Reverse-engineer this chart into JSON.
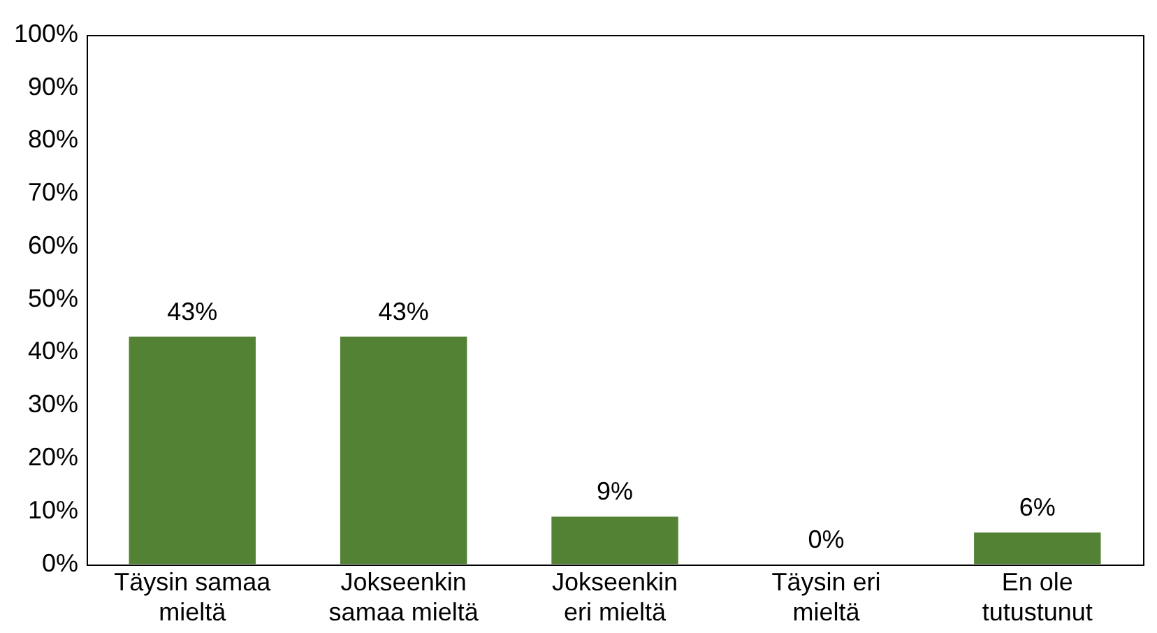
{
  "chart_data": {
    "type": "bar",
    "categories": [
      "Täysin samaa mieltä",
      "Jokseenkin samaa mieltä",
      "Jokseenkin eri mieltä",
      "Täysin eri mieltä",
      "En ole tutustunut"
    ],
    "values": [
      43,
      43,
      9,
      0,
      6
    ],
    "value_labels": [
      "43%",
      "43%",
      "9%",
      "0%",
      "6%"
    ],
    "color": "#548235",
    "ylim": [
      0,
      100
    ],
    "yticks": [
      {
        "value": 0,
        "label": "0%"
      },
      {
        "value": 10,
        "label": "10%"
      },
      {
        "value": 20,
        "label": "20%"
      },
      {
        "value": 30,
        "label": "30%"
      },
      {
        "value": 40,
        "label": "40%"
      },
      {
        "value": 50,
        "label": "50%"
      },
      {
        "value": 60,
        "label": "60%"
      },
      {
        "value": 70,
        "label": "70%"
      },
      {
        "value": 80,
        "label": "80%"
      },
      {
        "value": 90,
        "label": "90%"
      },
      {
        "value": 100,
        "label": "100%"
      }
    ],
    "grid": false,
    "legend": false
  }
}
